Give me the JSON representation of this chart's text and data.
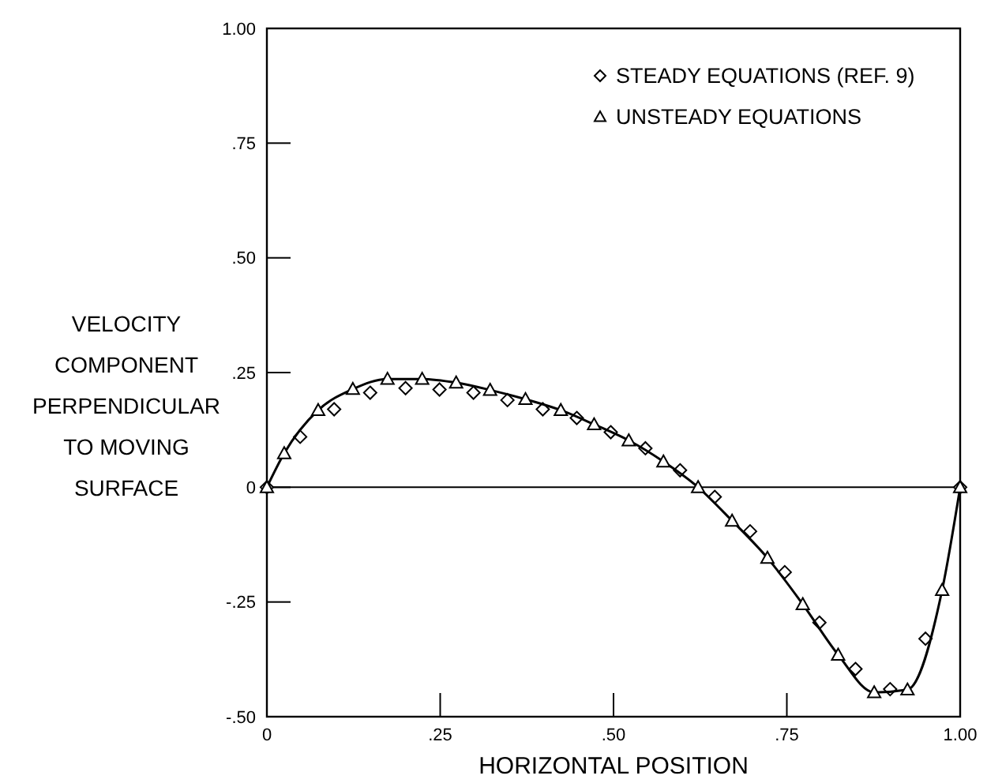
{
  "chart_data": {
    "type": "scatter",
    "xlabel": "HORIZONTAL POSITION",
    "ylabel": "VELOCITY COMPONENT PERPENDICULAR TO MOVING SURFACE",
    "xlim": [
      0,
      1
    ],
    "ylim": [
      -0.5,
      1
    ],
    "xticks": [
      0,
      {
        "value": 0.25,
        "label": ".25"
      },
      {
        "value": 0.5,
        "label": ".50"
      },
      {
        "value": 0.75,
        "label": ".75"
      },
      {
        "value": 1,
        "label": "1.00"
      }
    ],
    "yticks": [
      {
        "value": -0.5,
        "label": "-.50"
      },
      {
        "value": -0.25,
        "label": "-.25"
      },
      0,
      {
        "value": 0.25,
        "label": ".25"
      },
      {
        "value": 0.5,
        "label": ".50"
      },
      {
        "value": 0.75,
        "label": ".75"
      },
      {
        "value": 1,
        "label": "1.00"
      }
    ],
    "grid": false,
    "legend": "top right",
    "ref_lines": [
      {
        "axis": "y",
        "value": 0,
        "color": "#000000"
      }
    ],
    "series": [
      {
        "name": "STEADY EQUATIONS (REF. 9)",
        "marker": "diamond",
        "color": "#000000",
        "x": [
          0,
          0.048,
          0.097,
          0.149,
          0.2,
          0.249,
          0.298,
          0.347,
          0.398,
          0.447,
          0.496,
          0.546,
          0.596,
          0.646,
          0.697,
          0.747,
          0.797,
          0.849,
          0.899,
          0.95,
          1
        ],
        "values": [
          0,
          0.11,
          0.17,
          0.206,
          0.216,
          0.213,
          0.206,
          0.19,
          0.17,
          0.151,
          0.12,
          0.085,
          0.037,
          -0.021,
          -0.096,
          -0.185,
          -0.295,
          -0.396,
          -0.44,
          -0.33,
          0
        ]
      },
      {
        "name": "UNSTEADY EQUATIONS",
        "type": "line",
        "marker": "triangle",
        "line_style": "solid",
        "color": "#000000",
        "x": [
          0,
          0.025,
          0.074,
          0.124,
          0.174,
          0.224,
          0.273,
          0.322,
          0.373,
          0.424,
          0.472,
          0.522,
          0.572,
          0.622,
          0.671,
          0.722,
          0.773,
          0.824,
          0.876,
          0.924,
          0.974,
          1
        ],
        "values": [
          0,
          0.074,
          0.168,
          0.214,
          0.236,
          0.236,
          0.228,
          0.212,
          0.192,
          0.168,
          0.137,
          0.102,
          0.056,
          0,
          -0.073,
          -0.154,
          -0.255,
          -0.365,
          -0.447,
          -0.441,
          -0.224,
          0
        ]
      }
    ]
  }
}
